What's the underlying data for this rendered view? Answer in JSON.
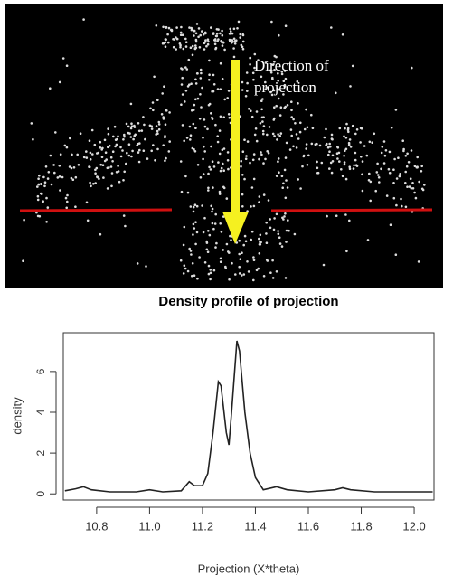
{
  "chart_data": {
    "type": "line",
    "annotation": [
      "Direction of",
      "projection"
    ],
    "title": "Density profile of projection",
    "x_label": "Projection (X*theta)",
    "y_label": "density",
    "x": [
      10.68,
      10.72,
      10.75,
      10.78,
      10.85,
      10.95,
      11.0,
      11.05,
      11.12,
      11.15,
      11.17,
      11.2,
      11.22,
      11.24,
      11.26,
      11.27,
      11.29,
      11.3,
      11.31,
      11.33,
      11.34,
      11.36,
      11.38,
      11.4,
      11.43,
      11.48,
      11.52,
      11.6,
      11.7,
      11.73,
      11.76,
      11.85,
      12.0,
      12.07
    ],
    "values": [
      0.15,
      0.25,
      0.35,
      0.2,
      0.1,
      0.1,
      0.2,
      0.1,
      0.15,
      0.6,
      0.4,
      0.4,
      1.0,
      3.0,
      5.5,
      5.3,
      3.0,
      2.4,
      4.0,
      7.5,
      7.0,
      4.0,
      2.0,
      0.8,
      0.2,
      0.35,
      0.2,
      0.1,
      0.2,
      0.3,
      0.2,
      0.1,
      0.1,
      0.1
    ],
    "color": "#222222",
    "xlim": [
      10.674,
      12.075
    ],
    "ylim": [
      -0.3,
      7.9
    ],
    "xticks": [
      10.8,
      {
        "value": 11,
        "label": "11.0"
      },
      11.2,
      11.4,
      11.6,
      11.8,
      {
        "value": 12,
        "label": "12.0"
      }
    ],
    "yticks": [
      0,
      2,
      4,
      6
    ]
  }
}
